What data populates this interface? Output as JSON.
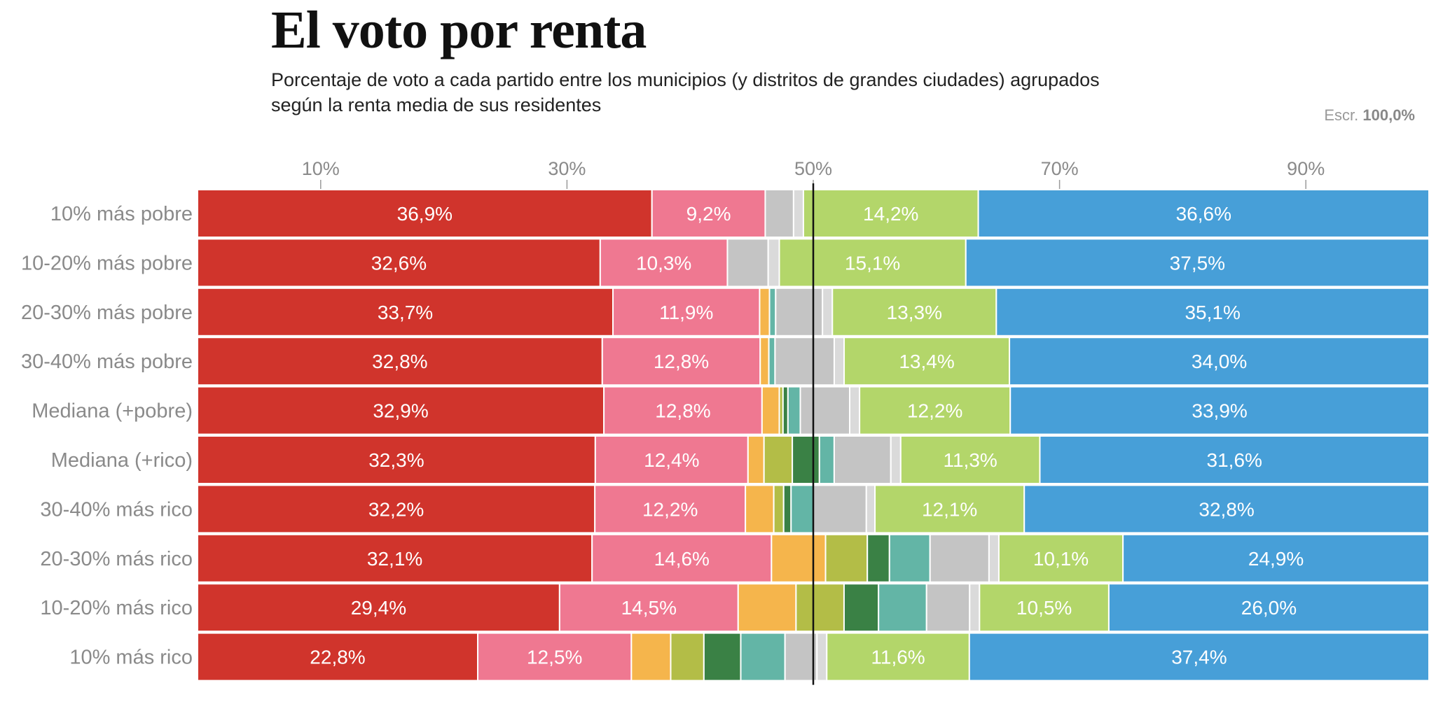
{
  "title": "El voto por renta",
  "subtitle": "Porcentaje de voto a cada partido entre los municipios (y distritos de grandes ciudades) agrupados según la renta media de sus residentes",
  "escrutinio": {
    "label": "Escr.",
    "value": "100,0%"
  },
  "colors": {
    "psoe": "#d0342c",
    "sumar": "#ef7891",
    "orange": "#f5b54c",
    "olive": "#b3bd47",
    "darkgreen": "#3a8145",
    "teal": "#63b5a6",
    "gray": "#c4c4c4",
    "lightgray": "#dadada",
    "vox": "#b3d66a",
    "pp": "#479fd8"
  },
  "chart_data": {
    "type": "bar",
    "orientation": "horizontal",
    "stacked": true,
    "xlim": [
      0,
      100
    ],
    "xticks": [
      10,
      30,
      50,
      70,
      90
    ],
    "xtick_labels": [
      "10%",
      "30%",
      "50%",
      "70%",
      "90%"
    ],
    "reference_line": 50,
    "grid": false,
    "categories": [
      "10% más pobre",
      "10-20% más pobre",
      "20-30% más pobre",
      "30-40% más pobre",
      "Mediana (+pobre)",
      "Mediana (+rico)",
      "30-40% más rico",
      "20-30% más rico",
      "10-20% más rico",
      "10% más rico"
    ],
    "series": [
      {
        "color": "psoe",
        "values": [
          36.9,
          32.6,
          33.7,
          32.8,
          32.9,
          32.3,
          32.2,
          32.1,
          29.4,
          22.8
        ],
        "labels": [
          "36,9%",
          "32,6%",
          "33,7%",
          "32,8%",
          "32,9%",
          "32,3%",
          "32,2%",
          "32,1%",
          "29,4%",
          "22,8%"
        ]
      },
      {
        "color": "sumar",
        "values": [
          9.2,
          10.3,
          11.9,
          12.8,
          12.8,
          12.4,
          12.2,
          14.6,
          14.5,
          12.5
        ],
        "labels": [
          "9,2%",
          "10,3%",
          "11,9%",
          "12,8%",
          "12,8%",
          "12,4%",
          "12,2%",
          "14,6%",
          "14,5%",
          "12,5%"
        ]
      },
      {
        "color": "orange",
        "values": [
          0.0,
          0.0,
          0.8,
          0.7,
          1.4,
          1.3,
          2.3,
          4.4,
          4.7,
          3.2
        ]
      },
      {
        "color": "olive",
        "values": [
          0.0,
          0.0,
          0.0,
          0.0,
          0.3,
          2.3,
          0.8,
          3.4,
          3.9,
          2.7
        ]
      },
      {
        "color": "darkgreen",
        "values": [
          0.0,
          0.0,
          0.0,
          0.0,
          0.4,
          2.2,
          0.6,
          1.8,
          2.8,
          3.0
        ]
      },
      {
        "color": "teal",
        "values": [
          0.0,
          0.0,
          0.5,
          0.5,
          1.0,
          1.2,
          1.8,
          3.3,
          3.9,
          3.6
        ]
      },
      {
        "color": "gray",
        "values": [
          2.3,
          3.3,
          3.8,
          4.8,
          4.0,
          4.6,
          4.3,
          4.8,
          3.5,
          2.6
        ]
      },
      {
        "color": "lightgray",
        "values": [
          0.8,
          0.9,
          0.8,
          0.8,
          0.8,
          0.8,
          0.7,
          0.8,
          0.8,
          0.8
        ]
      },
      {
        "color": "vox",
        "values": [
          14.2,
          15.1,
          13.3,
          13.4,
          12.2,
          11.3,
          12.1,
          10.1,
          10.5,
          11.6
        ],
        "labels": [
          "14,2%",
          "15,1%",
          "13,3%",
          "13,4%",
          "12,2%",
          "11,3%",
          "12,1%",
          "10,1%",
          "10,5%",
          "11,6%"
        ]
      },
      {
        "color": "pp",
        "values": [
          36.6,
          37.5,
          35.1,
          34.0,
          33.9,
          31.6,
          32.8,
          24.9,
          26.0,
          37.4
        ],
        "labels": [
          "36,6%",
          "37,5%",
          "35,1%",
          "34,0%",
          "33,9%",
          "31,6%",
          "32,8%",
          "24,9%",
          "26,0%",
          "37,4%"
        ]
      }
    ]
  }
}
